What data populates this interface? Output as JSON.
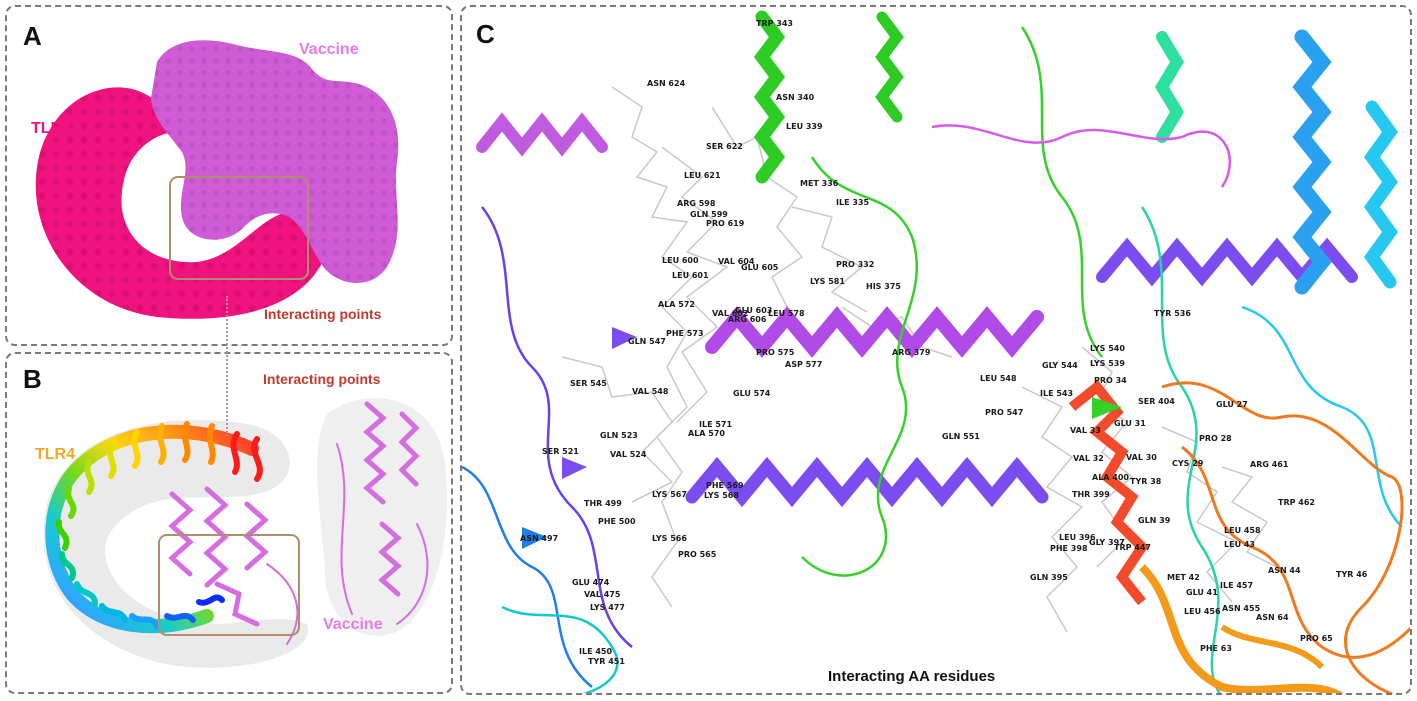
{
  "panel_a": {
    "letter": "A",
    "tlr4_label": "TLR4",
    "vaccine_label": "Vaccine",
    "interacting_label": "Interacting points"
  },
  "panel_b": {
    "letter": "B",
    "tlr4_label": "TLR4",
    "vaccine_label": "Vaccine",
    "interacting_label": "Interacting points"
  },
  "panel_c": {
    "letter": "C",
    "caption": "Interacting AA residues",
    "residues": [
      "TRP 343",
      "ASN 624",
      "ASN 340",
      "SER 622",
      "LEU 339",
      "LEU 621",
      "MET 336",
      "ARG 598",
      "ILE 335",
      "GLN 599",
      "PRO 619",
      "LEU 600",
      "VAL 604",
      "GLU 605",
      "PRO 332",
      "LEU 601",
      "LYS 581",
      "HIS 375",
      "ALA 572",
      "GLU 603",
      "VAL 602",
      "ARG 606",
      "LEU 578",
      "PHE 573",
      "TYR 536",
      "GLN 547",
      "PRO 575",
      "ASP 577",
      "ARG 379",
      "LYS 540",
      "SER 545",
      "VAL 548",
      "GLY 544",
      "LYS 539",
      "LEU 548",
      "PRO 34",
      "GLU 574",
      "ILE 543",
      "SER 404",
      "GLU 27",
      "PRO 547",
      "ILE 571",
      "ALA 570",
      "GLN 523",
      "GLU 31",
      "VAL 33",
      "GLN 551",
      "PRO 28",
      "SER 521",
      "VAL 524",
      "VAL 30",
      "VAL 32",
      "CYS 29",
      "ARG 461",
      "ALA 400",
      "TYR 38",
      "PHE 569",
      "LYS 567",
      "LYS 568",
      "THR 399",
      "TRP 462",
      "THR 499",
      "PHE 500",
      "GLN 39",
      "LEU 458",
      "LEU 43",
      "ASN 497",
      "LYS 566",
      "LEU 396",
      "PHE 398",
      "GLY 397",
      "TRP 447",
      "PRO 565",
      "GLN 395",
      "MET 42",
      "ASN 44",
      "TYR 46",
      "GLU 474",
      "GLU 41",
      "ILE 457",
      "VAL 475",
      "LEU 456",
      "ASN 455",
      "LYS 477",
      "ASN 64",
      "PRO 65",
      "PHE 63",
      "ILE 450",
      "TYR 451"
    ]
  },
  "colors": {
    "tlr4_surface": "#f0127f",
    "vaccine_surface": "#d05bd6",
    "vaccine_label": "#e57ae8",
    "interacting_label": "#c0392b",
    "tlr4_label_b": "#f5a623",
    "box": "#b08d6b"
  }
}
